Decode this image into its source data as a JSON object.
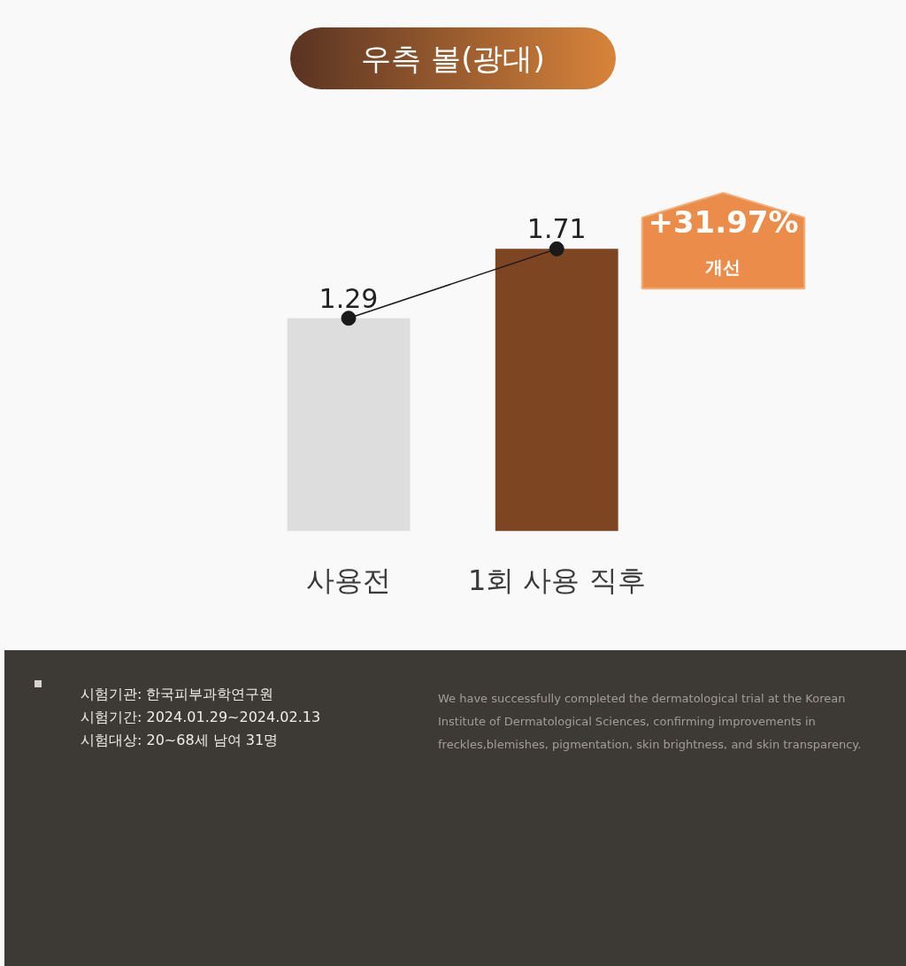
{
  "chart_data": {
    "type": "bar",
    "title": "우측 볼(광대)",
    "categories": [
      "사용전",
      "1회 사용 직후"
    ],
    "series": [
      {
        "colors": [
          "#dddddd",
          "#7e4522"
        ],
        "values": [
          1.29,
          1.71
        ],
        "value_labels": [
          "1.29",
          "1.71"
        ]
      },
      {
        "type": "line",
        "color": "#1a1a1a",
        "values": [
          1.29,
          1.71
        ],
        "marker": "circle"
      }
    ],
    "tick_labels": "x",
    "grid": false,
    "annotations": [
      "+31.97%",
      "개선",
      "시험기관: 한국피부과학연구원",
      "시험기간: 2024.01.29~2024.02.13",
      "시험대상: 20~68세 남여 31명",
      "We have successfully completed the dermatological trial at the Korean Institute of Dermatological Sciences, confirming improvements in freckles,blemishes, pigmentation, skin brightness, and skin transparency."
    ]
  }
}
